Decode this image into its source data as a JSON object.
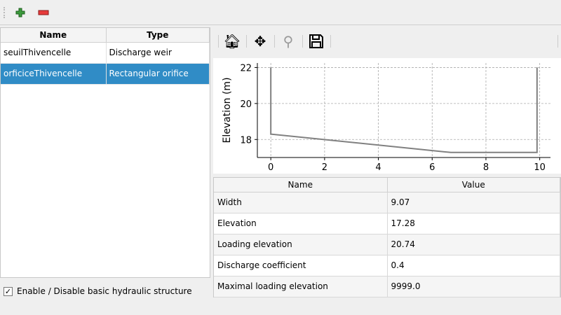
{
  "toolbar": {
    "add": "plus-icon",
    "remove": "minus-icon"
  },
  "structures": {
    "headers": [
      "Name",
      "Type"
    ],
    "rows": [
      {
        "name": "seuilThivencelle",
        "type": "Discharge weir"
      },
      {
        "name": "orficiceThivencelle",
        "type": "Rectangular orifice",
        "selected": true
      }
    ]
  },
  "enable_checkbox": {
    "label": "Enable / Disable basic hydraulic structure",
    "checked": true,
    "mark": "✓"
  },
  "plot_toolbar": [
    "home-icon",
    "pan-icon",
    "zoom-icon",
    "save-icon"
  ],
  "chart_data": {
    "type": "line",
    "ylabel": "Elevation (m)",
    "xlabel": "",
    "x": [
      0,
      0,
      6.7,
      9.9,
      9.9
    ],
    "y": [
      22,
      18.3,
      17.28,
      17.28,
      22
    ],
    "xlim": [
      -0.5,
      10.4
    ],
    "ylim": [
      17,
      22.25
    ],
    "xticks": [
      "0",
      "2",
      "4",
      "6",
      "8",
      "10"
    ],
    "yticks": [
      "18",
      "20",
      "22"
    ],
    "grid": true,
    "line_color": "#808080"
  },
  "params": {
    "headers": [
      "Name",
      "Value"
    ],
    "rows": [
      {
        "name": "Width",
        "value": "9.07"
      },
      {
        "name": "Elevation",
        "value": "17.28"
      },
      {
        "name": "Loading elevation",
        "value": "20.74"
      },
      {
        "name": "Discharge coefficient",
        "value": "0.4"
      },
      {
        "name": "Maximal loading elevation",
        "value": "9999.0"
      }
    ]
  }
}
